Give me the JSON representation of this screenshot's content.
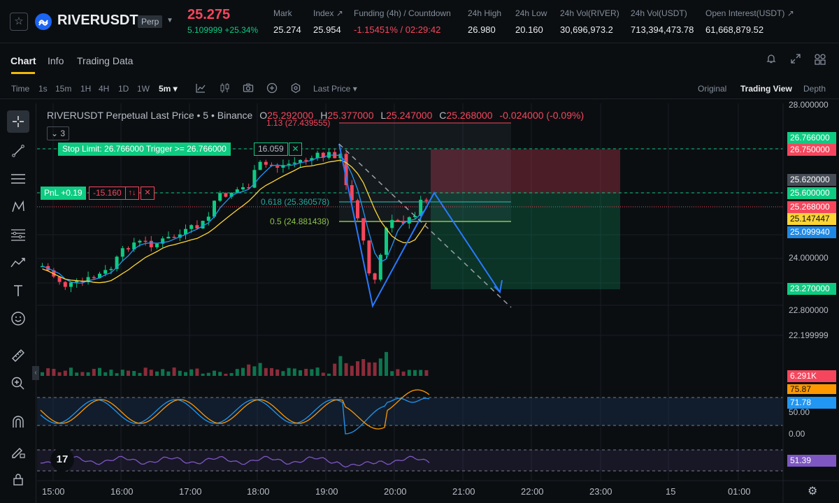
{
  "ticker": {
    "symbol": "RIVERUSDT",
    "badge": "Perp",
    "last_price": "25.275",
    "change": "5.109999 +25.34%",
    "stats": [
      {
        "label": "Mark",
        "value": "25.274"
      },
      {
        "label": "Index ↗",
        "value": "25.954"
      },
      {
        "label": "Funding (4h) / Countdown",
        "value": "-1.15451% / 02:29:42"
      },
      {
        "label": "24h High",
        "value": "26.980"
      },
      {
        "label": "24h Low",
        "value": "20.160"
      },
      {
        "label": "24h Vol(RIVER)",
        "value": "30,696,973.2"
      },
      {
        "label": "24h Vol(USDT)",
        "value": "713,394,473.78"
      },
      {
        "label": "Open Interest(USDT) ↗",
        "value": "61,668,879.52"
      }
    ]
  },
  "tabs": [
    "Chart",
    "Info",
    "Trading Data"
  ],
  "toolbar": {
    "intervals": [
      "Time",
      "1s",
      "15m",
      "1H",
      "4H",
      "1D",
      "1W",
      "5m ▾"
    ],
    "price_type": "Last Price ▾",
    "views": [
      "Original",
      "Trading View",
      "Depth"
    ]
  },
  "left_tools": [
    "crosshair-icon",
    "trend-line-icon",
    "horizontal-lines-icon",
    "pattern-icon",
    "fib-icon",
    "forecast-icon",
    "text-icon",
    "emoji-icon",
    "ruler-icon",
    "zoom-in-icon",
    "magnet-icon",
    "pencil-lock-icon",
    "lock-icon"
  ],
  "legend": {
    "name": "RIVERUSDT Perpetual Last Price • 5 • Binance",
    "open_k": "O",
    "open": "25.292000",
    "high_k": "H",
    "high": "25.377000",
    "low_k": "L",
    "low": "25.247000",
    "close_k": "C",
    "close": "25.268000",
    "change": "-0.024000 (-0.09%)"
  },
  "collapse": "3",
  "orders": {
    "stop_label": "Stop Limit: 26.766000 Trigger >= 26.766000",
    "stop_qty": "16.059",
    "pnl_label": "PnL +0.19",
    "pnl_qty": "-15.160",
    "close": "✕",
    "reverse": "↑↓"
  },
  "fib": {
    "l113": "1.13 (27.439555)",
    "l618": "0.618 (25.360578)",
    "l05": "0.5 (24.881438)"
  },
  "price_axis": [
    "28.000000",
    "24.000000",
    "22.800000",
    "22.199999",
    "50.00",
    "0.00"
  ],
  "price_tags": [
    {
      "text": "26.766000",
      "color": "#0ecb81"
    },
    {
      "text": "26.750000",
      "color": "#f6465d"
    },
    {
      "text": "25.620000",
      "color": "#474d57"
    },
    {
      "text": "25.600000",
      "color": "#0ecb81"
    },
    {
      "text": "25.268000",
      "color": "#f6465d"
    },
    {
      "text": "25.147447",
      "color": "#fcd535"
    },
    {
      "text": "25.099940",
      "color": "#1e88e5"
    },
    {
      "text": "23.270000",
      "color": "#0ecb81"
    },
    {
      "text": "6.291K",
      "color": "#f6465d"
    },
    {
      "text": "75.87",
      "color": "#ff9800"
    },
    {
      "text": "71.78",
      "color": "#2196f3"
    },
    {
      "text": "51.39",
      "color": "#7e57c2"
    }
  ],
  "time_axis": [
    "15:00",
    "16:00",
    "17:00",
    "18:00",
    "19:00",
    "20:00",
    "21:00",
    "22:00",
    "23:00",
    "15",
    "01:00"
  ],
  "tv_logo": "17",
  "colors": {
    "up": "#0ecb81",
    "down": "#f6465d",
    "accent": "#f0b90b"
  }
}
